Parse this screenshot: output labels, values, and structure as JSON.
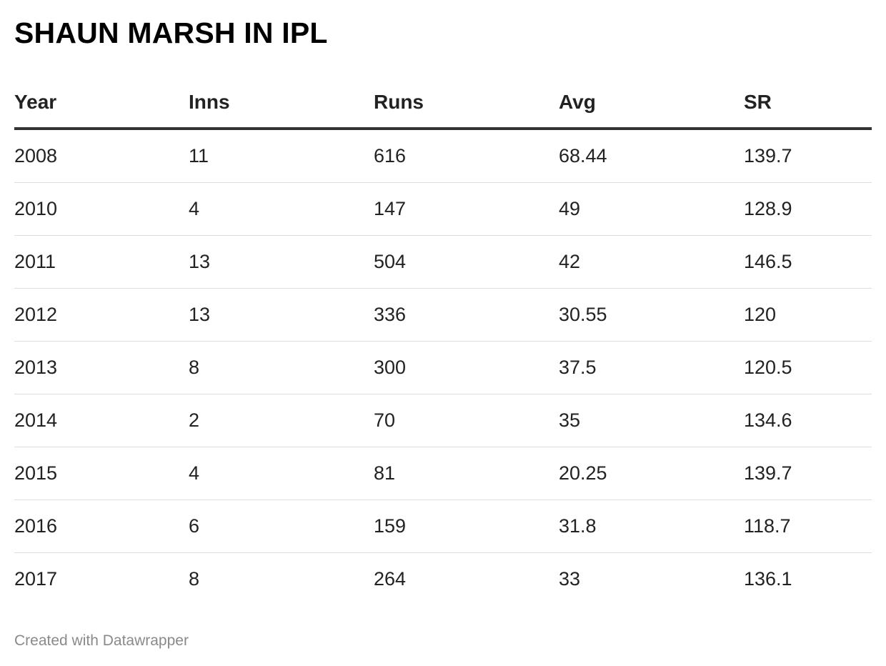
{
  "chart_data": {
    "type": "table",
    "title": "SHAUN MARSH IN IPL",
    "columns": [
      "Year",
      "Inns",
      "Runs",
      "Avg",
      "SR"
    ],
    "rows": [
      [
        "2008",
        "11",
        "616",
        "68.44",
        "139.7"
      ],
      [
        "2010",
        "4",
        "147",
        "49",
        "128.9"
      ],
      [
        "2011",
        "13",
        "504",
        "42",
        "146.5"
      ],
      [
        "2012",
        "13",
        "336",
        "30.55",
        "120"
      ],
      [
        "2013",
        "8",
        "300",
        "37.5",
        "120.5"
      ],
      [
        "2014",
        "2",
        "70",
        "35",
        "134.6"
      ],
      [
        "2015",
        "4",
        "81",
        "20.25",
        "139.7"
      ],
      [
        "2016",
        "6",
        "159",
        "31.8",
        "118.7"
      ],
      [
        "2017",
        "8",
        "264",
        "33",
        "136.1"
      ]
    ]
  },
  "footer": {
    "credit": "Created with Datawrapper"
  },
  "colors": {
    "text": "#222222",
    "header_rule": "#333333",
    "row_rule": "#dddddd",
    "credit": "#8a8a8a"
  }
}
